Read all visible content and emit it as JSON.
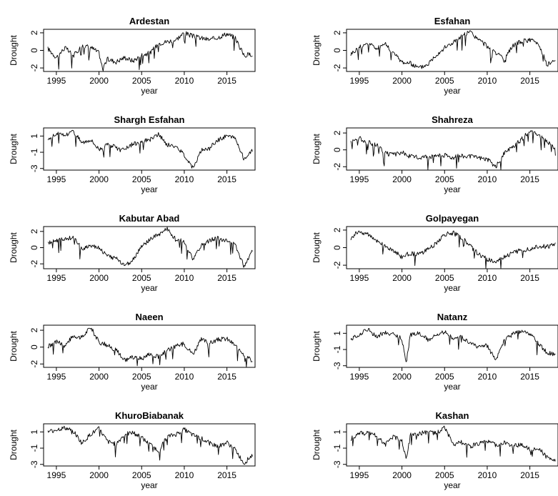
{
  "figure": {
    "xlabel": "year",
    "ylabel": "Drought"
  },
  "chart_data": [
    {
      "type": "line",
      "title": "Ardestan",
      "xlabel": "year",
      "ylabel": "Drought",
      "xlim": [
        1993.5,
        2018.3
      ],
      "ylim": [
        -2.4,
        2.4
      ],
      "xticks": [
        1995,
        2000,
        2005,
        2010,
        2015
      ],
      "yticks": [
        -2,
        0,
        2
      ],
      "x": [
        1994,
        1995,
        1996,
        1997,
        1998,
        1999,
        2000,
        2000.4,
        2001,
        2002,
        2003,
        2004,
        2005,
        2006,
        2007,
        2008,
        2009,
        2010,
        2011,
        2012,
        2013,
        2014,
        2015,
        2016,
        2017,
        2018
      ],
      "y": [
        0.2,
        -0.8,
        0.3,
        -0.6,
        0.5,
        0.4,
        -0.3,
        -2.0,
        -1.0,
        -1.3,
        -0.8,
        -1.2,
        -0.5,
        -0.3,
        0.8,
        1.0,
        1.2,
        2.0,
        1.6,
        1.4,
        1.2,
        1.5,
        1.9,
        1.4,
        -0.6,
        -0.4
      ]
    },
    {
      "type": "line",
      "title": "Esfahan",
      "xlabel": "year",
      "ylabel": "Drought",
      "xlim": [
        1993.5,
        2018.3
      ],
      "ylim": [
        -2.4,
        2.4
      ],
      "xticks": [
        1995,
        2000,
        2005,
        2010,
        2015
      ],
      "yticks": [
        -2,
        0,
        2
      ],
      "x": [
        1994,
        1995,
        1996,
        1997,
        1998,
        1999,
        2000,
        2001,
        2002,
        2003,
        2004,
        2005,
        2006,
        2007,
        2008,
        2009,
        2010,
        2011,
        2012,
        2013,
        2014,
        2015,
        2016,
        2017,
        2018
      ],
      "y": [
        -0.4,
        0.3,
        0.9,
        0.2,
        0.8,
        -0.3,
        -1.3,
        -1.5,
        -2.0,
        -1.6,
        -0.5,
        0.3,
        0.9,
        1.6,
        2.1,
        1.2,
        0.5,
        -0.2,
        -1.2,
        0.6,
        1.0,
        1.2,
        0.8,
        -1.6,
        -1.2
      ]
    },
    {
      "type": "line",
      "title": "Shargh Esfahan",
      "xlabel": "year",
      "ylabel": "Drought",
      "xlim": [
        1993.5,
        2018.3
      ],
      "ylim": [
        -3.2,
        2.0
      ],
      "xticks": [
        1995,
        2000,
        2005,
        2010,
        2015
      ],
      "yticks": [
        -3,
        -1,
        1
      ],
      "x": [
        1994,
        1995,
        1996,
        1997,
        1998,
        1999,
        2000,
        2001,
        2002,
        2003,
        2004,
        2005,
        2006,
        2007,
        2008,
        2009,
        2010,
        2011,
        2012,
        2013,
        2014,
        2015,
        2016,
        2017,
        2018
      ],
      "y": [
        0.6,
        1.3,
        1.1,
        1.6,
        0.2,
        0.6,
        -0.6,
        -0.1,
        -0.3,
        -0.6,
        0.0,
        0.3,
        0.6,
        1.2,
        -0.1,
        -0.3,
        -1.3,
        -2.9,
        -0.8,
        -0.4,
        0.5,
        1.1,
        0.7,
        -1.8,
        -0.8
      ]
    },
    {
      "type": "line",
      "title": "Shahreza",
      "xlabel": "year",
      "ylabel": "Drought",
      "xlim": [
        1993.5,
        2018.3
      ],
      "ylim": [
        -2.4,
        2.6
      ],
      "xticks": [
        1995,
        2000,
        2005,
        2010,
        2015
      ],
      "yticks": [
        -2,
        0,
        2
      ],
      "x": [
        1994,
        1995,
        1996,
        1997,
        1998,
        1999,
        2000,
        2001,
        2002,
        2003,
        2004,
        2005,
        2006,
        2007,
        2008,
        2009,
        2010,
        2011,
        2012,
        2013,
        2014,
        2015,
        2016,
        2017,
        2018
      ],
      "y": [
        1.0,
        1.4,
        0.9,
        0.6,
        -0.4,
        -0.6,
        -0.3,
        -0.8,
        -0.9,
        -0.7,
        -0.8,
        -0.6,
        -0.9,
        -0.7,
        -0.8,
        -0.9,
        -1.1,
        -2.0,
        -0.4,
        0.3,
        1.2,
        2.3,
        1.8,
        1.0,
        0.2
      ]
    },
    {
      "type": "line",
      "title": "Kabutar Abad",
      "xlabel": "year",
      "ylabel": "Drought",
      "xlim": [
        1993.5,
        2018.3
      ],
      "ylim": [
        -2.6,
        2.6
      ],
      "xticks": [
        1995,
        2000,
        2005,
        2010,
        2015
      ],
      "yticks": [
        -2,
        0,
        2
      ],
      "x": [
        1994,
        1995,
        1996,
        1997,
        1998,
        1999,
        2000,
        2001,
        2002,
        2003,
        2004,
        2005,
        2006,
        2007,
        2008,
        2009,
        2010,
        2011,
        2012,
        2013,
        2014,
        2015,
        2016,
        2017,
        2018
      ],
      "y": [
        0.5,
        0.9,
        1.1,
        1.3,
        -0.2,
        0.3,
        0.0,
        -1.1,
        -1.3,
        -2.2,
        -1.5,
        0.2,
        1.0,
        1.6,
        2.3,
        1.0,
        0.8,
        -1.5,
        0.3,
        0.9,
        1.2,
        0.8,
        0.3,
        -2.3,
        -0.3
      ]
    },
    {
      "type": "line",
      "title": "Golpayegan",
      "xlabel": "year",
      "ylabel": "Drought",
      "xlim": [
        1993.5,
        2018.3
      ],
      "ylim": [
        -2.4,
        2.4
      ],
      "xticks": [
        1995,
        2000,
        2005,
        2010,
        2015
      ],
      "yticks": [
        -2,
        0,
        2
      ],
      "x": [
        1994,
        1995,
        1996,
        1997,
        1998,
        1999,
        2000,
        2001,
        2002,
        2003,
        2004,
        2005,
        2006,
        2007,
        2008,
        2009,
        2010,
        2011,
        2012,
        2013,
        2014,
        2015,
        2016,
        2017,
        2018
      ],
      "y": [
        1.1,
        1.9,
        1.5,
        0.9,
        0.1,
        -0.3,
        -1.1,
        -0.6,
        -0.8,
        -0.2,
        0.5,
        1.5,
        1.7,
        1.1,
        0.2,
        -0.8,
        -1.3,
        -1.7,
        -1.0,
        -0.6,
        -0.3,
        -0.1,
        0.2,
        0.1,
        0.4
      ]
    },
    {
      "type": "line",
      "title": "Naeen",
      "xlabel": "year",
      "ylabel": "Drought",
      "xlim": [
        1993.5,
        2018.3
      ],
      "ylim": [
        -2.4,
        2.6
      ],
      "xticks": [
        1995,
        2000,
        2005,
        2010,
        2015
      ],
      "yticks": [
        -2,
        0,
        2
      ],
      "x": [
        1994,
        1995,
        1996,
        1997,
        1998,
        1999,
        2000,
        2001,
        2002,
        2003,
        2004,
        2005,
        2006,
        2007,
        2008,
        2009,
        2010,
        2011,
        2012,
        2013,
        2014,
        2015,
        2016,
        2017,
        2018
      ],
      "y": [
        0.1,
        0.6,
        0.2,
        1.4,
        1.1,
        2.4,
        0.6,
        0.2,
        -0.3,
        -1.6,
        -1.2,
        -1.4,
        -0.7,
        -1.2,
        -0.4,
        0.1,
        0.4,
        -0.8,
        0.9,
        0.5,
        0.9,
        1.0,
        0.2,
        -1.1,
        -1.6
      ]
    },
    {
      "type": "line",
      "title": "Natanz",
      "xlabel": "year",
      "ylabel": "Drought",
      "xlim": [
        1993.5,
        2018.3
      ],
      "ylim": [
        -3.2,
        2.0
      ],
      "xticks": [
        1995,
        2000,
        2005,
        2010,
        2015
      ],
      "yticks": [
        -3,
        -1,
        1
      ],
      "x": [
        1994,
        1995,
        1996,
        1997,
        1998,
        1999,
        2000,
        2000.5,
        2001,
        2002,
        2003,
        2004,
        2005,
        2006,
        2007,
        2008,
        2009,
        2010,
        2011,
        2012,
        2013,
        2014,
        2015,
        2016,
        2017,
        2018
      ],
      "y": [
        0.2,
        0.9,
        1.5,
        0.6,
        1.1,
        0.9,
        0.3,
        -2.6,
        0.8,
        1.1,
        0.2,
        0.7,
        1.2,
        0.4,
        0.6,
        -0.2,
        -0.7,
        -0.5,
        -2.4,
        0.1,
        0.9,
        1.2,
        1.0,
        -0.3,
        -1.4,
        -1.6
      ]
    },
    {
      "type": "line",
      "title": "KhuroBiabanak",
      "xlabel": "year",
      "ylabel": "Drought",
      "xlim": [
        1993.5,
        2018.3
      ],
      "ylim": [
        -3.2,
        2.0
      ],
      "xticks": [
        1995,
        2000,
        2005,
        2010,
        2015
      ],
      "yticks": [
        -3,
        -1,
        1
      ],
      "x": [
        1994,
        1995,
        1996,
        1997,
        1998,
        1999,
        2000,
        2001,
        2002,
        2003,
        2004,
        2005,
        2006,
        2007,
        2008,
        2009,
        2010,
        2011,
        2012,
        2013,
        2014,
        2015,
        2016,
        2017,
        2018
      ],
      "y": [
        1.0,
        1.3,
        1.5,
        1.1,
        -0.4,
        0.7,
        1.4,
        -0.2,
        -0.5,
        0.7,
        0.9,
        0.3,
        -0.6,
        -1.3,
        0.4,
        0.7,
        1.3,
        0.6,
        0.2,
        -0.4,
        -0.8,
        -0.3,
        -1.2,
        -2.9,
        -1.8
      ]
    },
    {
      "type": "line",
      "title": "Kashan",
      "xlabel": "year",
      "ylabel": "Drought",
      "xlim": [
        1993.5,
        2018.3
      ],
      "ylim": [
        -3.2,
        2.0
      ],
      "xticks": [
        1995,
        2000,
        2005,
        2010,
        2015
      ],
      "yticks": [
        -3,
        -1,
        1
      ],
      "x": [
        1994,
        1995,
        1996,
        1997,
        1998,
        1999,
        2000,
        2000.5,
        2001,
        2002,
        2003,
        2004,
        2005,
        2006,
        2007,
        2008,
        2009,
        2010,
        2011,
        2012,
        2013,
        2014,
        2015,
        2016,
        2017,
        2018
      ],
      "y": [
        0.2,
        0.8,
        0.9,
        0.5,
        -0.6,
        0.5,
        -0.2,
        -2.4,
        0.6,
        0.8,
        1.0,
        0.8,
        1.5,
        -0.5,
        -0.3,
        -0.8,
        -0.4,
        -0.2,
        -0.6,
        -0.3,
        -0.8,
        -0.5,
        -1.2,
        -0.9,
        -2.2,
        -2.6
      ]
    }
  ]
}
